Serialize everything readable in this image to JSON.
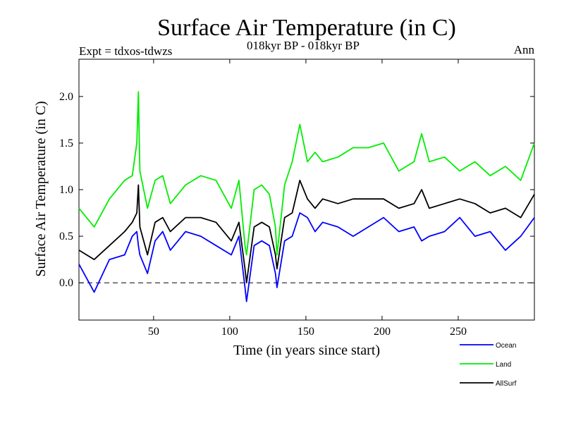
{
  "header": {
    "title": "Surface Air Temperature (in C)",
    "subtitle": "018kyr BP - 018kyr BP",
    "left_note": "Expt = tdxos-tdwzs",
    "right_note": "Ann"
  },
  "chart_data": {
    "type": "line",
    "title": "Surface Air Temperature (in C)",
    "subtitle": "018kyr BP - 018kyr BP",
    "xlabel": "Time (in years since start)",
    "ylabel": "Surface Air Temperature (in C)",
    "xlim": [
      1,
      300
    ],
    "ylim": [
      -0.4,
      2.4
    ],
    "xticks": [
      50,
      100,
      150,
      200,
      250
    ],
    "yticks": [
      0.0,
      0.5,
      1.0,
      1.5,
      2.0
    ],
    "ytick_labels": [
      "0.0",
      "0.5",
      "1.0",
      "1.5",
      "2.0"
    ],
    "reference_line": {
      "y": 0.0,
      "style": "dashed"
    },
    "grid": false,
    "legend_position": "bottom-right, below plot",
    "x": [
      1,
      11,
      21,
      31,
      36,
      39,
      40,
      41,
      46,
      51,
      56,
      61,
      71,
      81,
      91,
      101,
      106,
      110,
      111,
      116,
      121,
      126,
      130,
      131,
      136,
      141,
      146,
      151,
      156,
      161,
      171,
      181,
      191,
      201,
      211,
      221,
      226,
      231,
      241,
      251,
      261,
      271,
      281,
      291,
      300
    ],
    "series": [
      {
        "name": "Ocean",
        "color": "#0000ff",
        "values": [
          0.2,
          -0.1,
          0.25,
          0.3,
          0.5,
          0.55,
          0.4,
          0.3,
          0.1,
          0.45,
          0.55,
          0.35,
          0.55,
          0.5,
          0.4,
          0.3,
          0.5,
          -0.05,
          -0.2,
          0.4,
          0.45,
          0.4,
          0.1,
          -0.05,
          0.45,
          0.5,
          0.75,
          0.7,
          0.55,
          0.65,
          0.6,
          0.5,
          0.6,
          0.7,
          0.55,
          0.6,
          0.45,
          0.5,
          0.55,
          0.7,
          0.5,
          0.55,
          0.35,
          0.5,
          0.7
        ]
      },
      {
        "name": "Land",
        "color": "#00ee00",
        "values": [
          0.8,
          0.6,
          0.9,
          1.1,
          1.15,
          1.5,
          2.05,
          1.2,
          0.8,
          1.1,
          1.15,
          0.85,
          1.05,
          1.15,
          1.1,
          0.8,
          1.1,
          0.4,
          0.3,
          1.0,
          1.05,
          0.95,
          0.6,
          0.3,
          1.05,
          1.3,
          1.7,
          1.3,
          1.4,
          1.3,
          1.35,
          1.45,
          1.45,
          1.5,
          1.2,
          1.3,
          1.6,
          1.3,
          1.35,
          1.2,
          1.3,
          1.15,
          1.25,
          1.1,
          1.5
        ]
      },
      {
        "name": "AllSurf",
        "color": "#000000",
        "values": [
          0.35,
          0.25,
          0.4,
          0.55,
          0.65,
          0.75,
          1.05,
          0.6,
          0.3,
          0.65,
          0.7,
          0.55,
          0.7,
          0.7,
          0.65,
          0.45,
          0.65,
          0.15,
          0.0,
          0.6,
          0.65,
          0.6,
          0.3,
          0.15,
          0.7,
          0.75,
          1.1,
          0.9,
          0.8,
          0.9,
          0.85,
          0.9,
          0.9,
          0.9,
          0.8,
          0.85,
          1.0,
          0.8,
          0.85,
          0.9,
          0.85,
          0.75,
          0.8,
          0.7,
          0.95
        ]
      }
    ]
  }
}
